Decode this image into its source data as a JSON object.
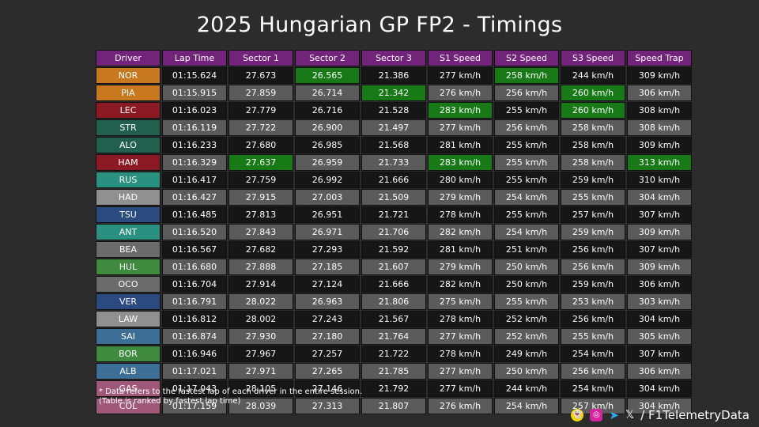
{
  "title": "2025 Hungarian GP FP2 - Timings",
  "watermark": "F1TelemetryData",
  "headers": [
    "Driver",
    "Lap Time",
    "Sector 1",
    "Sector 2",
    "Sector 3",
    "S1 Speed",
    "S2 Speed",
    "S3 Speed",
    "Speed Trap"
  ],
  "rows": [
    {
      "driver": "NOR",
      "color": "#c8781f",
      "cells": [
        "01:15.624",
        "27.673",
        "26.565",
        "21.386",
        "277 km/h",
        "258 km/h",
        "244 km/h",
        "309 km/h"
      ],
      "best": [
        2,
        5
      ]
    },
    {
      "driver": "PIA",
      "color": "#c8781f",
      "cells": [
        "01:15.915",
        "27.859",
        "26.714",
        "21.342",
        "276 km/h",
        "256 km/h",
        "260 km/h",
        "306 km/h"
      ],
      "best": [
        3,
        6
      ]
    },
    {
      "driver": "LEC",
      "color": "#8c1a24",
      "cells": [
        "01:16.023",
        "27.779",
        "26.716",
        "21.528",
        "283 km/h",
        "255 km/h",
        "260 km/h",
        "308 km/h"
      ],
      "best": [
        4,
        6
      ]
    },
    {
      "driver": "STR",
      "color": "#22604e",
      "cells": [
        "01:16.119",
        "27.722",
        "26.900",
        "21.497",
        "277 km/h",
        "256 km/h",
        "258 km/h",
        "308 km/h"
      ],
      "best": []
    },
    {
      "driver": "ALO",
      "color": "#22604e",
      "cells": [
        "01:16.233",
        "27.680",
        "26.985",
        "21.568",
        "281 km/h",
        "255 km/h",
        "258 km/h",
        "309 km/h"
      ],
      "best": []
    },
    {
      "driver": "HAM",
      "color": "#8c1a24",
      "cells": [
        "01:16.329",
        "27.637",
        "26.959",
        "21.733",
        "283 km/h",
        "255 km/h",
        "258 km/h",
        "313 km/h"
      ],
      "best": [
        1,
        4,
        7
      ]
    },
    {
      "driver": "RUS",
      "color": "#2a9080",
      "cells": [
        "01:16.417",
        "27.759",
        "26.992",
        "21.666",
        "280 km/h",
        "255 km/h",
        "259 km/h",
        "310 km/h"
      ],
      "best": []
    },
    {
      "driver": "HAD",
      "color": "#909090",
      "cells": [
        "01:16.427",
        "27.915",
        "27.003",
        "21.509",
        "279 km/h",
        "254 km/h",
        "255 km/h",
        "304 km/h"
      ],
      "best": []
    },
    {
      "driver": "TSU",
      "color": "#2a4a80",
      "cells": [
        "01:16.485",
        "27.813",
        "26.951",
        "21.721",
        "278 km/h",
        "255 km/h",
        "257 km/h",
        "307 km/h"
      ],
      "best": []
    },
    {
      "driver": "ANT",
      "color": "#2a9080",
      "cells": [
        "01:16.520",
        "27.843",
        "26.971",
        "21.706",
        "282 km/h",
        "254 km/h",
        "259 km/h",
        "309 km/h"
      ],
      "best": []
    },
    {
      "driver": "BEA",
      "color": "#6b6b6b",
      "cells": [
        "01:16.567",
        "27.682",
        "27.293",
        "21.592",
        "281 km/h",
        "251 km/h",
        "256 km/h",
        "307 km/h"
      ],
      "best": []
    },
    {
      "driver": "HUL",
      "color": "#3f8a3f",
      "cells": [
        "01:16.680",
        "27.888",
        "27.185",
        "21.607",
        "279 km/h",
        "250 km/h",
        "256 km/h",
        "309 km/h"
      ],
      "best": []
    },
    {
      "driver": "OCO",
      "color": "#6b6b6b",
      "cells": [
        "01:16.704",
        "27.914",
        "27.124",
        "21.666",
        "282 km/h",
        "250 km/h",
        "259 km/h",
        "306 km/h"
      ],
      "best": []
    },
    {
      "driver": "VER",
      "color": "#2a4a80",
      "cells": [
        "01:16.791",
        "28.022",
        "26.963",
        "21.806",
        "275 km/h",
        "255 km/h",
        "253 km/h",
        "303 km/h"
      ],
      "best": []
    },
    {
      "driver": "LAW",
      "color": "#909090",
      "cells": [
        "01:16.812",
        "28.002",
        "27.243",
        "21.567",
        "278 km/h",
        "252 km/h",
        "256 km/h",
        "304 km/h"
      ],
      "best": []
    },
    {
      "driver": "SAI",
      "color": "#3d6f96",
      "cells": [
        "01:16.874",
        "27.930",
        "27.180",
        "21.764",
        "277 km/h",
        "252 km/h",
        "255 km/h",
        "305 km/h"
      ],
      "best": []
    },
    {
      "driver": "BOR",
      "color": "#3f8a3f",
      "cells": [
        "01:16.946",
        "27.967",
        "27.257",
        "21.722",
        "278 km/h",
        "249 km/h",
        "254 km/h",
        "307 km/h"
      ],
      "best": []
    },
    {
      "driver": "ALB",
      "color": "#3d6f96",
      "cells": [
        "01:17.021",
        "27.971",
        "27.265",
        "21.785",
        "277 km/h",
        "250 km/h",
        "256 km/h",
        "306 km/h"
      ],
      "best": []
    },
    {
      "driver": "GAS",
      "color": "#a05878",
      "cells": [
        "01:17.043",
        "28.105",
        "27.146",
        "21.792",
        "277 km/h",
        "244 km/h",
        "254 km/h",
        "304 km/h"
      ],
      "best": []
    },
    {
      "driver": "COL",
      "color": "#a05878",
      "cells": [
        "01:17.159",
        "28.039",
        "27.313",
        "21.807",
        "276 km/h",
        "254 km/h",
        "257 km/h",
        "304 km/h"
      ],
      "best": []
    }
  ],
  "footnote": {
    "line1": "* Data refers to the fastest lap of each driver in the entire session.",
    "line2": "(Table is ranked by fastest lap time)"
  },
  "social": {
    "handle": "/ F1TelemetryData",
    "snapchat_icon": "snapchat-icon",
    "instagram_icon": "instagram-icon",
    "telegram_icon": "telegram-icon",
    "x_icon": "x-icon"
  },
  "colors": {
    "header": "#72237a",
    "best": "#177a17",
    "background": "#2c2c2c"
  }
}
